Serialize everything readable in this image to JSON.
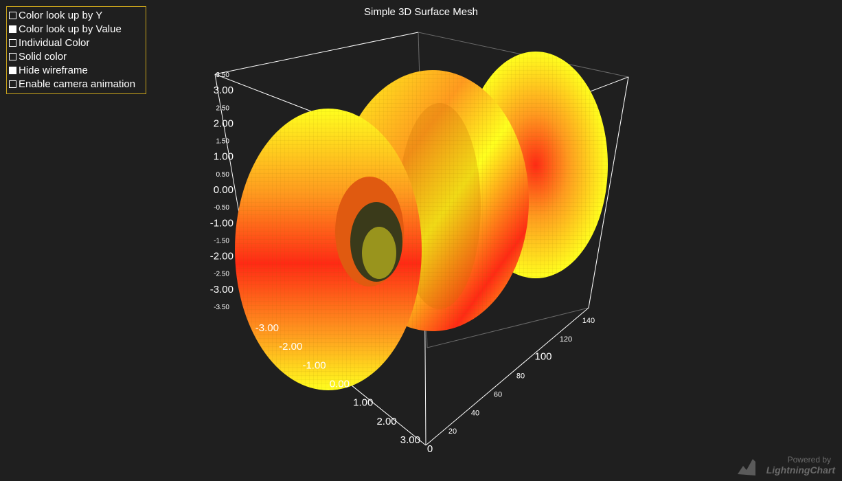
{
  "options": [
    {
      "label": "Color look up by Y",
      "checked": false
    },
    {
      "label": "Color look up by Value",
      "checked": true
    },
    {
      "label": "Individual Color",
      "checked": false
    },
    {
      "label": "Solid color",
      "checked": false
    },
    {
      "label": "Hide wireframe",
      "checked": true
    },
    {
      "label": "Enable camera animation",
      "checked": false
    }
  ],
  "chart": {
    "title": "Simple 3D Surface Mesh",
    "y_ticks": [
      "3.50",
      "3.00",
      "2.50",
      "2.00",
      "1.50",
      "1.00",
      "0.50",
      "0.00",
      "-0.50",
      "-1.00",
      "-1.50",
      "-2.00",
      "-2.50",
      "-3.00",
      "-3.50"
    ],
    "x_ticks": [
      "-3.00",
      "-2.00",
      "-1.00",
      "0.00",
      "1.00",
      "2.00",
      "3.00"
    ],
    "z_ticks": [
      "0",
      "20",
      "40",
      "60",
      "80",
      "100",
      "120",
      "140"
    ],
    "palette": {
      "low": "#ffff1e",
      "mid": "#ff9a1f",
      "high": "#ff2a14",
      "axis": "#ffffff"
    }
  },
  "watermark": {
    "powered": "Powered by",
    "brand": "LightningChart"
  }
}
